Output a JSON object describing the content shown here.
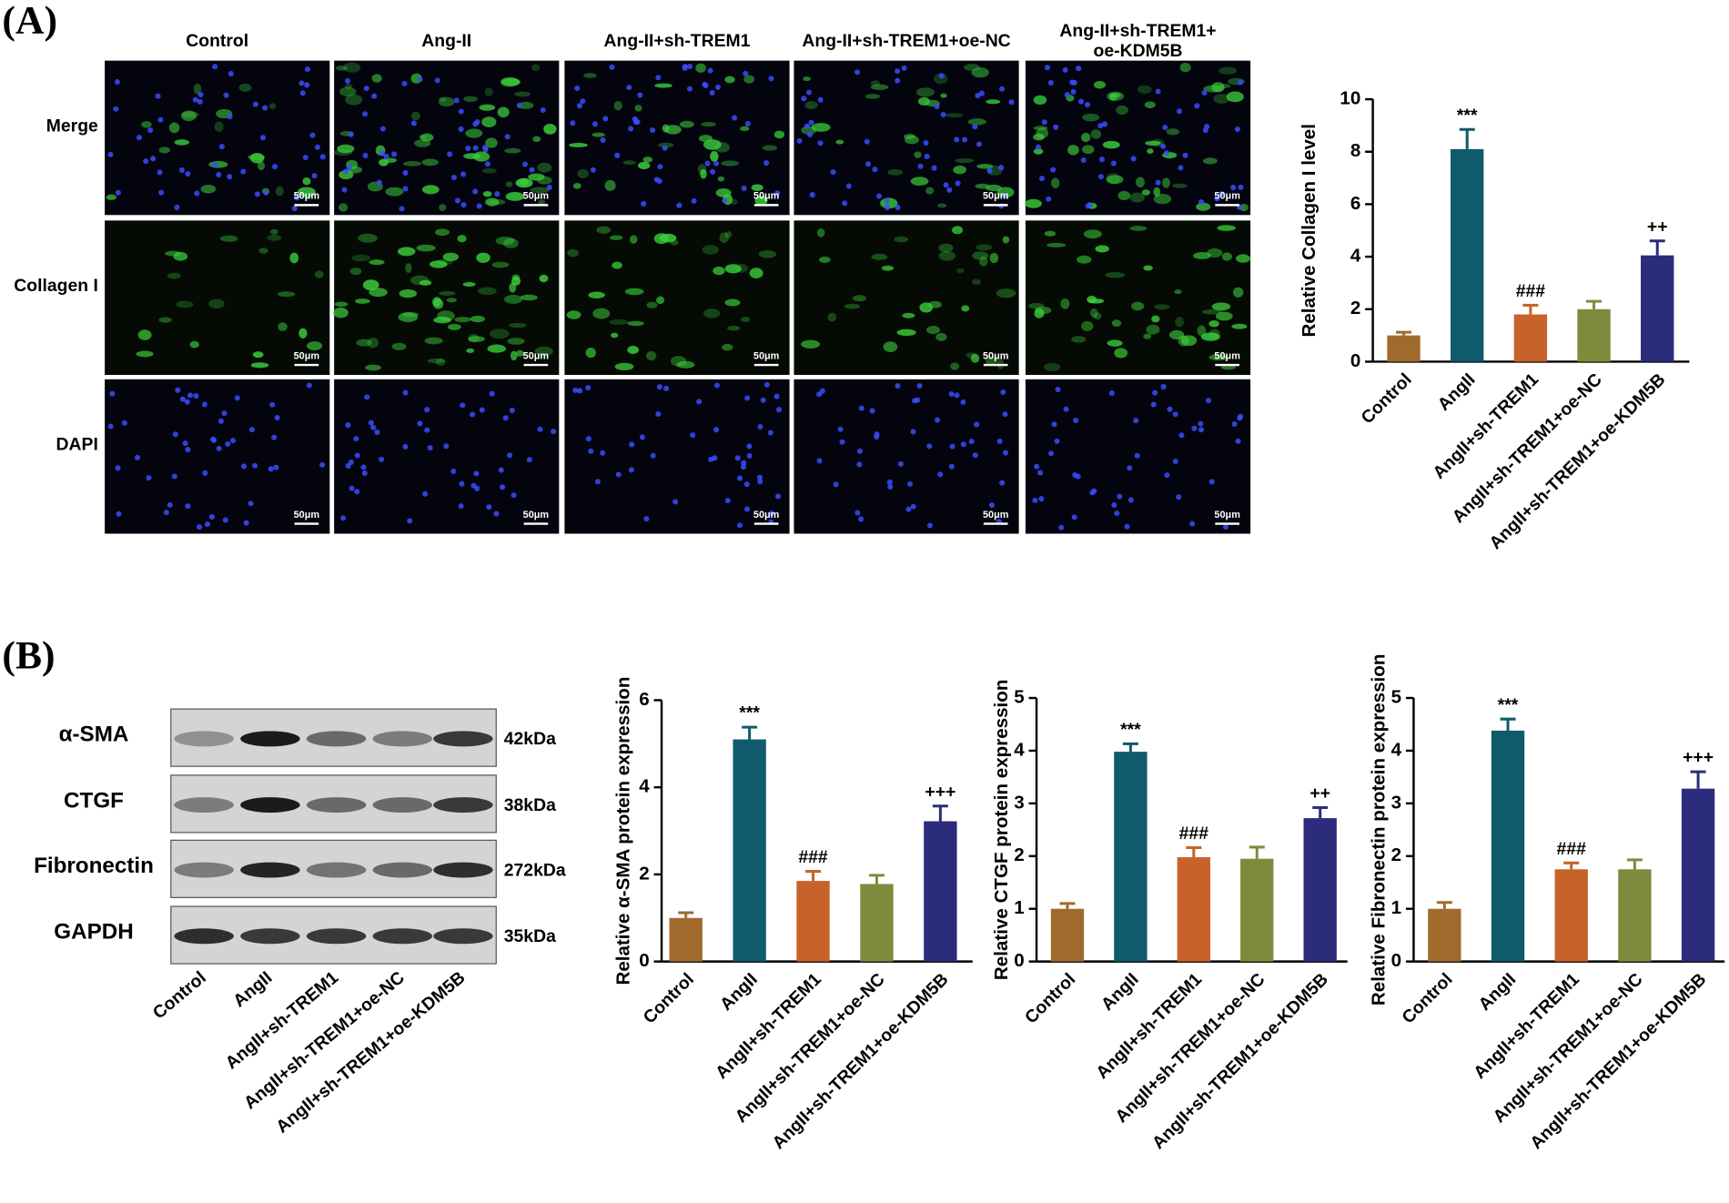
{
  "panel_labels": [
    "(A)",
    "(B)"
  ],
  "microscopy": {
    "columns": [
      "Control",
      "Ang-II",
      "Ang-II+sh-TREM1",
      "Ang-II+sh-TREM1+oe-NC",
      [
        "Ang-II+sh-TREM1+",
        "oe-KDM5B"
      ]
    ],
    "rows": [
      "Merge",
      "Collagen I",
      "DAPI"
    ],
    "scale_bar": "50μm"
  },
  "blot": {
    "proteins": [
      "α-SMA",
      "CTGF",
      "Fibronectin",
      "GAPDH"
    ],
    "sizes": [
      "42kDa",
      "38kDa",
      "272kDa",
      "35kDa"
    ],
    "lanes": [
      "Control",
      "AngII",
      "AngII+sh-TREM1",
      "AngII+sh-TREM1+oe-NC",
      "AngII+sh-TREM1+oe-KDM5B"
    ]
  },
  "chart_data": [
    {
      "type": "bar",
      "y_label": "Relative Collagen I level",
      "categories": [
        "Control",
        "AngII",
        "AngII+sh-TREM1",
        "AngII+sh-TREM1+oe-NC",
        "AngII+sh-TREM1+oe-KDM5B"
      ],
      "values": [
        1.0,
        8.1,
        1.8,
        2.0,
        4.05
      ],
      "errors": [
        0.12,
        0.75,
        0.35,
        0.3,
        0.55
      ],
      "annotations": [
        null,
        "***",
        "###",
        null,
        "++"
      ],
      "colors": [
        "#a06a2c",
        "#0f5b6b",
        "#c7632a",
        "#7f8a3c",
        "#2c2c7c"
      ],
      "ylim": [
        0,
        10
      ],
      "yticks": [
        0,
        2,
        4,
        6,
        8,
        10
      ]
    },
    {
      "type": "bar",
      "y_label": "Relative α-SMA protein expression",
      "categories": [
        "Control",
        "AngII",
        "AngII+sh-TREM1",
        "AngII+sh-TREM1+oe-NC",
        "AngII+sh-TREM1+oe-KDM5B"
      ],
      "values": [
        1.0,
        5.1,
        1.85,
        1.78,
        3.22
      ],
      "errors": [
        0.12,
        0.28,
        0.22,
        0.2,
        0.35
      ],
      "annotations": [
        null,
        "***",
        "###",
        null,
        "+++"
      ],
      "colors": [
        "#a06a2c",
        "#0f5b6b",
        "#c7632a",
        "#7f8a3c",
        "#2c2c7c"
      ],
      "ylim": [
        0,
        6
      ],
      "yticks": [
        0,
        2,
        4,
        6
      ]
    },
    {
      "type": "bar",
      "y_label": "Relative CTGF protein expression",
      "categories": [
        "Control",
        "AngII",
        "AngII+sh-TREM1",
        "AngII+sh-TREM1+oe-NC",
        "AngII+sh-TREM1+oe-KDM5B"
      ],
      "values": [
        1.0,
        3.98,
        1.98,
        1.95,
        2.72
      ],
      "errors": [
        0.1,
        0.15,
        0.18,
        0.22,
        0.2
      ],
      "annotations": [
        null,
        "***",
        "###",
        null,
        "++"
      ],
      "colors": [
        "#a06a2c",
        "#0f5b6b",
        "#c7632a",
        "#7f8a3c",
        "#2c2c7c"
      ],
      "ylim": [
        0,
        5
      ],
      "yticks": [
        0,
        1,
        2,
        3,
        4,
        5
      ]
    },
    {
      "type": "bar",
      "y_label": "Relative Fibronectin protein expression",
      "categories": [
        "Control",
        "AngII",
        "AngII+sh-TREM1",
        "AngII+sh-TREM1+oe-NC",
        "AngII+sh-TREM1+oe-KDM5B"
      ],
      "values": [
        1.0,
        4.38,
        1.75,
        1.75,
        3.28
      ],
      "errors": [
        0.12,
        0.22,
        0.12,
        0.18,
        0.32
      ],
      "annotations": [
        null,
        "***",
        "###",
        null,
        "+++"
      ],
      "colors": [
        "#a06a2c",
        "#0f5b6b",
        "#c7632a",
        "#7f8a3c",
        "#2c2c7c"
      ],
      "ylim": [
        0,
        5
      ],
      "yticks": [
        0,
        1,
        2,
        3,
        4,
        5
      ]
    }
  ]
}
